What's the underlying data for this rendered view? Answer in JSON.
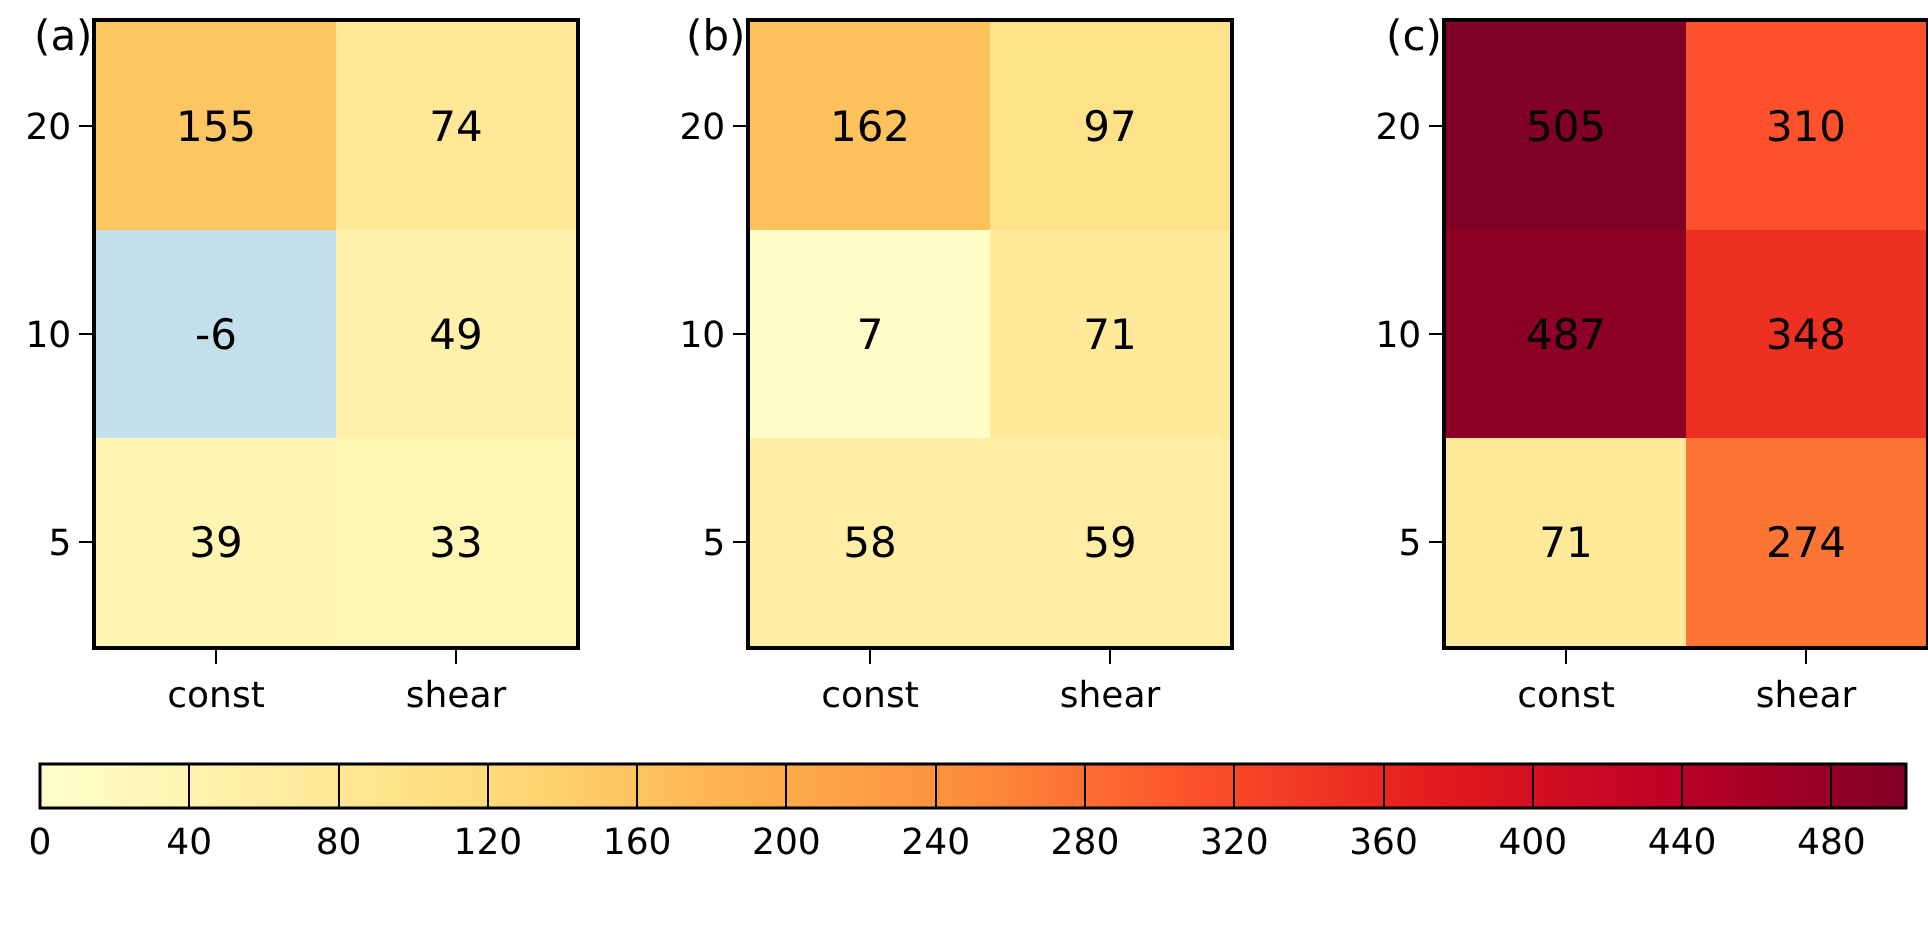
{
  "chart_data": [
    {
      "type": "heatmap",
      "title": "(a)",
      "categories": [
        "const",
        "shear"
      ],
      "y_categories": [
        "20",
        "10",
        "5"
      ],
      "cells": [
        [
          155,
          74
        ],
        [
          -6,
          49
        ],
        [
          39,
          33
        ]
      ],
      "data_labels": true
    },
    {
      "type": "heatmap",
      "title": "(b)",
      "categories": [
        "const",
        "shear"
      ],
      "y_categories": [
        "20",
        "10",
        "5"
      ],
      "cells": [
        [
          162,
          97
        ],
        [
          7,
          71
        ],
        [
          58,
          59
        ]
      ],
      "data_labels": true
    },
    {
      "type": "heatmap",
      "title": "(c)",
      "categories": [
        "const",
        "shear"
      ],
      "y_categories": [
        "20",
        "10",
        "5"
      ],
      "cells": [
        [
          505,
          310
        ],
        [
          487,
          348
        ],
        [
          71,
          274
        ]
      ],
      "clim": [
        0,
        500
      ],
      "cticks": [
        0,
        40,
        80,
        120,
        160,
        200,
        240,
        280,
        320,
        360,
        400,
        440,
        480
      ],
      "data_labels": true
    }
  ]
}
